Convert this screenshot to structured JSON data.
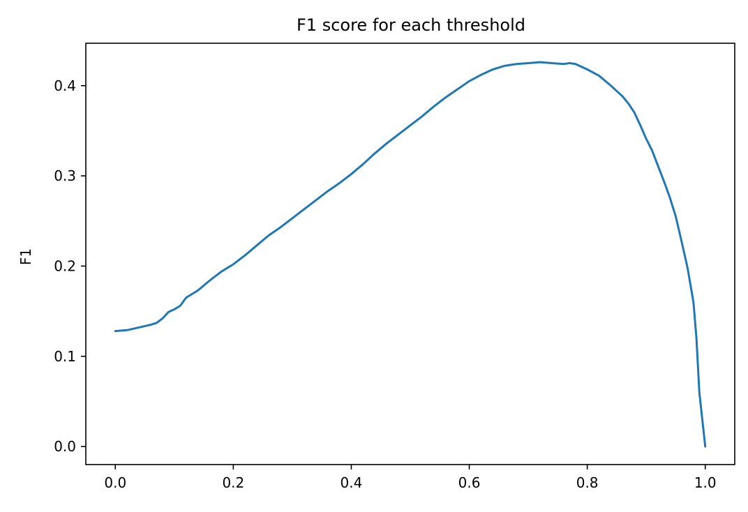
{
  "chart_data": {
    "type": "line",
    "title": "F1 score for each threshold",
    "xlabel": "",
    "ylabel": "F1",
    "xlim": [
      -0.05,
      1.05
    ],
    "ylim": [
      -0.02,
      0.447
    ],
    "xticks": [
      0.0,
      0.2,
      0.4,
      0.6,
      0.8,
      1.0
    ],
    "xtick_labels": [
      "0.0",
      "0.2",
      "0.4",
      "0.6",
      "0.8",
      "1.0"
    ],
    "yticks": [
      0.0,
      0.1,
      0.2,
      0.3,
      0.4
    ],
    "ytick_labels": [
      "0.0",
      "0.1",
      "0.2",
      "0.3",
      "0.4"
    ],
    "grid": false,
    "line_color": "#1f77b4",
    "series": [
      {
        "x": [
          0.0,
          0.02,
          0.04,
          0.06,
          0.07,
          0.08,
          0.09,
          0.1,
          0.11,
          0.12,
          0.14,
          0.16,
          0.18,
          0.2,
          0.22,
          0.24,
          0.26,
          0.28,
          0.3,
          0.32,
          0.34,
          0.36,
          0.38,
          0.4,
          0.42,
          0.44,
          0.46,
          0.48,
          0.5,
          0.52,
          0.54,
          0.56,
          0.58,
          0.6,
          0.62,
          0.64,
          0.66,
          0.68,
          0.7,
          0.72,
          0.74,
          0.76,
          0.77,
          0.78,
          0.8,
          0.82,
          0.84,
          0.86,
          0.87,
          0.88,
          0.89,
          0.9,
          0.91,
          0.92,
          0.93,
          0.94,
          0.95,
          0.96,
          0.97,
          0.98,
          0.985,
          0.99,
          1.0
        ],
        "y": [
          0.128,
          0.129,
          0.132,
          0.135,
          0.137,
          0.142,
          0.149,
          0.152,
          0.156,
          0.165,
          0.173,
          0.184,
          0.194,
          0.202,
          0.212,
          0.223,
          0.234,
          0.243,
          0.253,
          0.263,
          0.273,
          0.283,
          0.292,
          0.302,
          0.313,
          0.325,
          0.336,
          0.346,
          0.356,
          0.366,
          0.377,
          0.387,
          0.396,
          0.405,
          0.412,
          0.418,
          0.422,
          0.424,
          0.425,
          0.426,
          0.425,
          0.424,
          0.425,
          0.424,
          0.418,
          0.411,
          0.4,
          0.388,
          0.38,
          0.37,
          0.356,
          0.341,
          0.328,
          0.311,
          0.294,
          0.276,
          0.255,
          0.227,
          0.198,
          0.16,
          0.121,
          0.06,
          0.0
        ]
      }
    ]
  }
}
